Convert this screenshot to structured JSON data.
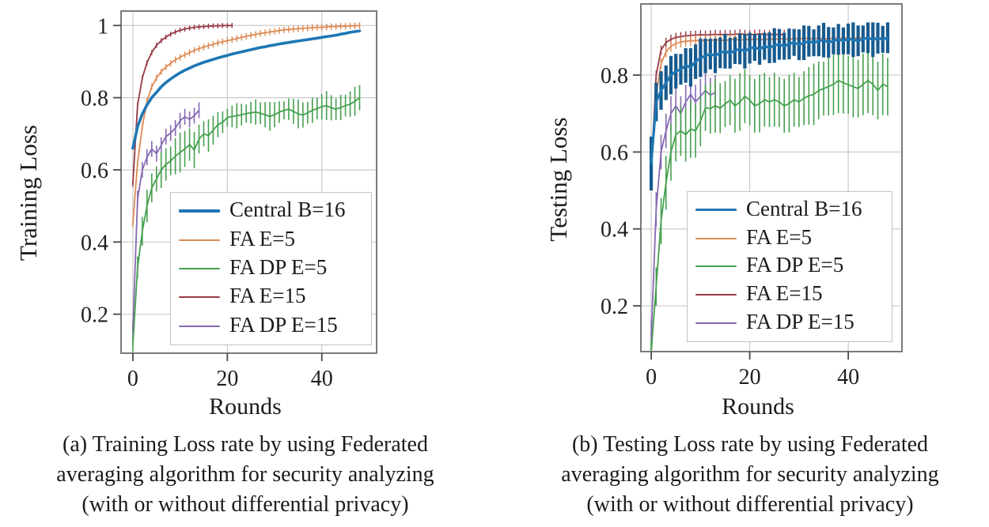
{
  "page_background": "#ffffff",
  "chart_data": [
    {
      "id": "a",
      "type": "line",
      "title": "",
      "xlabel": "Rounds",
      "ylabel": "Training Loss",
      "caption_lines": [
        "(a) Training Loss rate by using Federated",
        "averaging algorithm for security analyzing",
        "(with or without differential privacy)"
      ],
      "xlim": [
        -2.5,
        51.6
      ],
      "ylim": [
        0.092,
        1.04
      ],
      "grid": true,
      "legend_position": "lower-right-inside",
      "xticks": [
        0,
        20,
        40
      ],
      "xtick_labels": [
        "0",
        "20",
        "40"
      ],
      "yticks": [
        1,
        0.8,
        0.6,
        0.4,
        0.2
      ],
      "ytick_labels": [
        "1",
        "0.8",
        "0.6",
        "0.4",
        "0.2"
      ],
      "grid_color": "#cbcbcb",
      "spine_color": "#7b7b7b",
      "series": [
        {
          "name": "Central B=16",
          "color": "#1f77b4",
          "line_width": 3.6,
          "z": 3,
          "values": [
            0.66,
            0.72,
            0.755,
            0.78,
            0.8,
            0.815,
            0.83,
            0.842,
            0.852,
            0.861,
            0.869,
            0.876,
            0.882,
            0.888,
            0.893,
            0.898,
            0.902,
            0.906,
            0.91,
            0.914,
            0.917,
            0.921,
            0.924,
            0.927,
            0.93,
            0.933,
            0.936,
            0.939,
            0.941,
            0.944,
            0.946,
            0.949,
            0.951,
            0.953,
            0.955,
            0.957,
            0.959,
            0.961,
            0.963,
            0.965,
            0.967,
            0.969,
            0.971,
            0.973,
            0.976,
            0.978,
            0.981,
            0.983,
            0.985
          ]
        },
        {
          "name": "FA E=5",
          "color": "#dd8a55",
          "line_width": 1.8,
          "z": 2,
          "yerr": 0.009,
          "err_width": 1.4,
          "values": [
            0.45,
            0.62,
            0.72,
            0.79,
            0.83,
            0.855,
            0.872,
            0.885,
            0.895,
            0.905,
            0.912,
            0.919,
            0.925,
            0.931,
            0.936,
            0.94,
            0.944,
            0.948,
            0.952,
            0.955,
            0.958,
            0.961,
            0.964,
            0.967,
            0.97,
            0.973,
            0.975,
            0.978,
            0.98,
            0.982,
            0.984,
            0.986,
            0.988,
            0.989,
            0.99,
            0.991,
            0.992,
            0.993,
            0.994,
            0.995,
            0.995,
            0.996,
            0.997,
            0.997,
            0.998,
            0.998,
            0.999,
            0.999,
            1.0
          ]
        },
        {
          "name": "FA DP E=5",
          "color": "#45a04e",
          "line_width": 1.8,
          "z": 5,
          "yerr": [
            0.02,
            0.03,
            0.04,
            0.045,
            0.04,
            0.035,
            0.05,
            0.045,
            0.04,
            0.05,
            0.055,
            0.05,
            0.045,
            0.05,
            0.04,
            0.035,
            0.045,
            0.04,
            0.035,
            0.03,
            0.025,
            0.03,
            0.035,
            0.03,
            0.025,
            0.03,
            0.035,
            0.03,
            0.035,
            0.04,
            0.035,
            0.03,
            0.025,
            0.03,
            0.035,
            0.04,
            0.035,
            0.03,
            0.035,
            0.03,
            0.035,
            0.04,
            0.035,
            0.03,
            0.035,
            0.03,
            0.035,
            0.04,
            0.035
          ],
          "err_width": 1.6,
          "values": [
            0.115,
            0.33,
            0.43,
            0.5,
            0.55,
            0.575,
            0.6,
            0.615,
            0.625,
            0.638,
            0.648,
            0.658,
            0.67,
            0.655,
            0.685,
            0.7,
            0.695,
            0.71,
            0.725,
            0.732,
            0.745,
            0.748,
            0.75,
            0.753,
            0.756,
            0.758,
            0.76,
            0.757,
            0.753,
            0.748,
            0.753,
            0.76,
            0.765,
            0.768,
            0.762,
            0.755,
            0.752,
            0.758,
            0.765,
            0.77,
            0.775,
            0.778,
            0.772,
            0.768,
            0.773,
            0.778,
            0.782,
            0.79,
            0.8
          ]
        },
        {
          "name": "FA E=15",
          "color": "#973a44",
          "line_width": 1.8,
          "z": 1,
          "yerr": 0.007,
          "err_width": 1.4,
          "values": [
            0.56,
            0.78,
            0.855,
            0.897,
            0.925,
            0.945,
            0.958,
            0.968,
            0.976,
            0.982,
            0.987,
            0.99,
            0.993,
            0.995,
            0.996,
            0.997,
            0.998,
            0.999,
            0.999,
            1.0,
            1.0,
            1.0
          ]
        },
        {
          "name": "FA DP E=15",
          "color": "#8669b2",
          "line_width": 1.8,
          "z": 4,
          "yerr": 0.022,
          "err_width": 1.6,
          "values": [
            0.155,
            0.52,
            0.6,
            0.635,
            0.658,
            0.645,
            0.668,
            0.692,
            0.702,
            0.716,
            0.736,
            0.747,
            0.74,
            0.75,
            0.765
          ]
        }
      ]
    },
    {
      "id": "b",
      "type": "line",
      "title": "",
      "xlabel": "Rounds",
      "ylabel": "Testing Loss",
      "caption_lines": [
        "(b) Testing Loss rate by using Federated",
        "averaging algorithm for security analyzing",
        "(with or without differential privacy)"
      ],
      "xlim": [
        -2.1,
        50.9
      ],
      "ylim": [
        0.081,
        0.985
      ],
      "grid": true,
      "legend_position": "lower-right-inside",
      "xticks": [
        0,
        20,
        40
      ],
      "xtick_labels": [
        "0",
        "20",
        "40"
      ],
      "yticks": [
        0.8,
        0.6,
        0.4,
        0.2
      ],
      "ytick_labels": [
        "0.8",
        "0.6",
        "0.4",
        "0.2"
      ],
      "grid_color": "#cbcbcb",
      "spine_color": "#7b7b7b",
      "series": [
        {
          "name": "Central B=16",
          "color": "#1f77b4",
          "line_width": 3.2,
          "z": 5,
          "yerr": [
            0.07,
            0.05,
            0.05,
            0.045,
            0.05,
            0.045,
            0.04,
            0.045,
            0.05,
            0.045,
            0.05,
            0.045,
            0.04,
            0.045,
            0.04,
            0.045,
            0.04,
            0.035,
            0.04,
            0.045,
            0.04,
            0.035,
            0.04,
            0.035,
            0.04,
            0.045,
            0.04,
            0.035,
            0.04,
            0.035,
            0.04,
            0.045,
            0.04,
            0.035,
            0.04,
            0.045,
            0.04,
            0.035,
            0.04,
            0.035,
            0.04,
            0.045,
            0.04,
            0.035,
            0.04,
            0.045,
            0.04,
            0.035,
            0.04
          ],
          "err_width": 4.2,
          "err_color": "#175a8e",
          "values": [
            0.57,
            0.73,
            0.76,
            0.78,
            0.8,
            0.81,
            0.815,
            0.825,
            0.82,
            0.835,
            0.845,
            0.85,
            0.855,
            0.85,
            0.858,
            0.862,
            0.857,
            0.864,
            0.868,
            0.862,
            0.87,
            0.872,
            0.867,
            0.875,
            0.871,
            0.877,
            0.88,
            0.875,
            0.881,
            0.885,
            0.879,
            0.884,
            0.888,
            0.884,
            0.889,
            0.891,
            0.885,
            0.889,
            0.893,
            0.889,
            0.894,
            0.892,
            0.889,
            0.894,
            0.897,
            0.892,
            0.896,
            0.893,
            0.897
          ]
        },
        {
          "name": "FA E=5",
          "color": "#dd8a55",
          "line_width": 1.8,
          "z": 2,
          "yerr": 0.014,
          "err_width": 1.4,
          "values": [
            0.55,
            0.75,
            0.83,
            0.86,
            0.875,
            0.882,
            0.886,
            0.888,
            0.889,
            0.89,
            0.889,
            0.891,
            0.89,
            0.892,
            0.891,
            0.89,
            0.892,
            0.893,
            0.891,
            0.893,
            0.892,
            0.894,
            0.893,
            0.892,
            0.894,
            0.893,
            0.895,
            0.894,
            0.893,
            0.895,
            0.894,
            0.896,
            0.895,
            0.894,
            0.896,
            0.895,
            0.894,
            0.896,
            0.895,
            0.897,
            0.896,
            0.895,
            0.897,
            0.896,
            0.895,
            0.897,
            0.896,
            0.897,
            0.896
          ]
        },
        {
          "name": "FA DP E=5",
          "color": "#45a04e",
          "line_width": 1.8,
          "z": 4,
          "yerr": [
            0.03,
            0.05,
            0.06,
            0.07,
            0.075,
            0.07,
            0.065,
            0.07,
            0.075,
            0.07,
            0.065,
            0.06,
            0.065,
            0.07,
            0.065,
            0.06,
            0.065,
            0.07,
            0.075,
            0.07,
            0.065,
            0.07,
            0.075,
            0.07,
            0.065,
            0.07,
            0.065,
            0.07,
            0.075,
            0.07,
            0.065,
            0.07,
            0.075,
            0.08,
            0.075,
            0.07,
            0.075,
            0.08,
            0.085,
            0.08,
            0.075,
            0.08,
            0.075,
            0.08,
            0.085,
            0.08,
            0.075,
            0.08,
            0.075
          ],
          "err_width": 1.6,
          "values": [
            0.08,
            0.25,
            0.42,
            0.52,
            0.6,
            0.645,
            0.655,
            0.645,
            0.66,
            0.655,
            0.68,
            0.715,
            0.713,
            0.72,
            0.714,
            0.725,
            0.735,
            0.72,
            0.73,
            0.745,
            0.735,
            0.72,
            0.726,
            0.736,
            0.73,
            0.736,
            0.73,
            0.72,
            0.726,
            0.736,
            0.73,
            0.74,
            0.746,
            0.75,
            0.76,
            0.765,
            0.77,
            0.776,
            0.786,
            0.78,
            0.775,
            0.77,
            0.765,
            0.776,
            0.786,
            0.776,
            0.76,
            0.776,
            0.77
          ]
        },
        {
          "name": "FA E=15",
          "color": "#973a44",
          "line_width": 1.8,
          "z": 1,
          "yerr": 0.012,
          "err_width": 1.4,
          "values": [
            0.55,
            0.8,
            0.865,
            0.885,
            0.893,
            0.898,
            0.9,
            0.902,
            0.903,
            0.904,
            0.905,
            0.904,
            0.905,
            0.906,
            0.905,
            0.906,
            0.905,
            0.906,
            0.907,
            0.906,
            0.905,
            0.906,
            0.907,
            0.906,
            0.905,
            0.906,
            0.905,
            0.906
          ]
        },
        {
          "name": "FA DP E=15",
          "color": "#8669b2",
          "line_width": 1.8,
          "z": 3,
          "yerr": 0.045,
          "err_width": 1.6,
          "values": [
            0.12,
            0.45,
            0.6,
            0.655,
            0.7,
            0.72,
            0.7,
            0.73,
            0.75,
            0.73,
            0.745,
            0.76,
            0.748,
            0.755
          ]
        }
      ]
    }
  ]
}
